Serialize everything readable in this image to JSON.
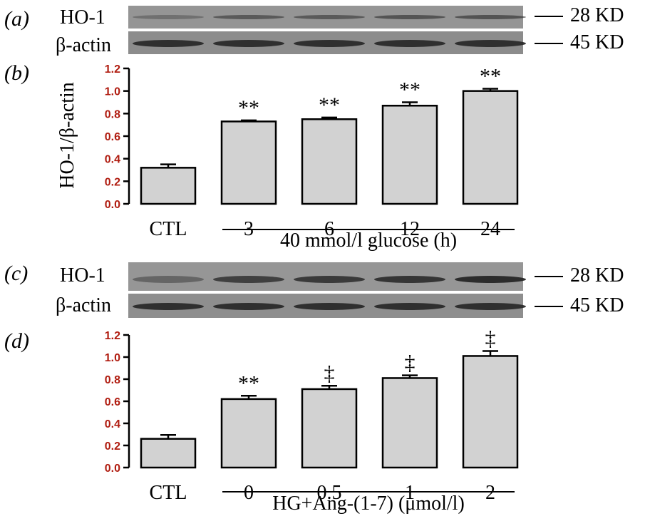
{
  "panels": {
    "a": {
      "label": "(a)",
      "rows": [
        {
          "protein": "HO-1",
          "marker": "28 KD"
        },
        {
          "protein": "β-actin",
          "marker": "45 KD"
        }
      ]
    },
    "c": {
      "label": "(c)",
      "rows": [
        {
          "protein": "HO-1",
          "marker": "28 KD"
        },
        {
          "protein": "β-actin",
          "marker": "45 KD"
        }
      ]
    }
  },
  "colors": {
    "bar_fill": "#d2d2d2",
    "blot_bg": "#8e8e8e",
    "blot_band": "#2a2a2a",
    "axis_tick_labels": "#b01c10",
    "ink": "#000000"
  },
  "chart_data": [
    {
      "id": "b",
      "panel_label": "(b)",
      "type": "bar",
      "title": "",
      "ylabel": "HO-1/β-actin",
      "ylim": [
        0,
        1.2
      ],
      "yticks": [
        "0.0",
        "0.2",
        "0.4",
        "0.6",
        "0.8",
        "1.0",
        "1.2"
      ],
      "categories": [
        "CTL",
        "3",
        "6",
        "12",
        "24"
      ],
      "values": [
        0.32,
        0.73,
        0.75,
        0.87,
        1.0
      ],
      "errors": [
        0.03,
        0.01,
        0.015,
        0.03,
        0.02
      ],
      "annotations": [
        "",
        "**",
        "**",
        "**",
        "**"
      ],
      "group_label": "40 mmol/l glucose (h)"
    },
    {
      "id": "d",
      "panel_label": "(d)",
      "type": "bar",
      "title": "",
      "ylabel": "",
      "ylim": [
        0,
        1.2
      ],
      "yticks": [
        "0.0",
        "0.2",
        "0.4",
        "0.6",
        "0.8",
        "1.0",
        "1.2"
      ],
      "categories": [
        "CTL",
        "0",
        "0.5",
        "1",
        "2"
      ],
      "values": [
        0.26,
        0.62,
        0.71,
        0.81,
        1.01
      ],
      "errors": [
        0.035,
        0.03,
        0.03,
        0.025,
        0.045
      ],
      "annotations": [
        "",
        "**",
        "‡",
        "‡",
        "‡"
      ],
      "group_label": "HG+Ang-(1-7) (μmol/l)"
    }
  ]
}
